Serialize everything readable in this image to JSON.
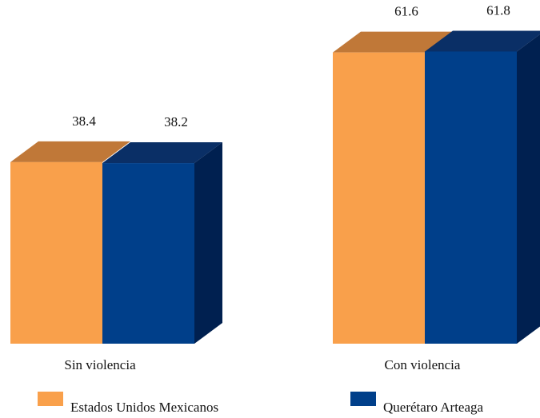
{
  "chart_data": {
    "type": "bar",
    "categories": [
      "Sin violencia",
      "Con violencia"
    ],
    "series": [
      {
        "name": "Estados Unidos Mexicanos",
        "values": [
          38.4,
          61.6
        ],
        "color": "#F9A04B"
      },
      {
        "name": "Querétaro Arteaga",
        "values": [
          38.2,
          61.8
        ],
        "color": "#003F8A"
      }
    ],
    "value_labels": [
      [
        "38.4",
        "61.6"
      ],
      [
        "38.2",
        "61.8"
      ]
    ],
    "title": "",
    "xlabel": "",
    "ylabel": "",
    "ylim": [
      0,
      62
    ],
    "grid": false,
    "legend": "bottom",
    "style": "3d"
  }
}
